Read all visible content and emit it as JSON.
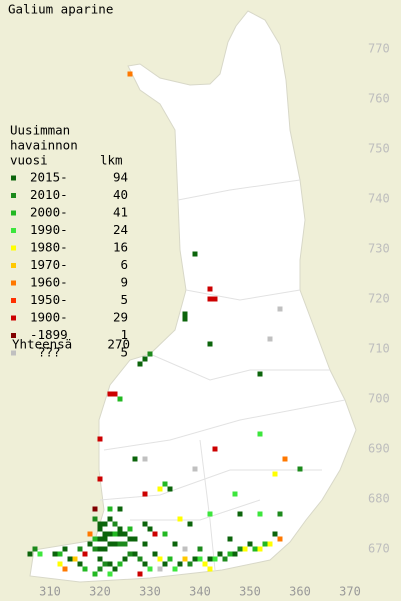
{
  "title": "Galium aparine",
  "legend": {
    "heading": [
      "Uusimman",
      "havainnon",
      "vuosi"
    ],
    "count_heading": "lkm",
    "items": [
      {
        "label": "2015-",
        "count": 94,
        "color": "#0b640b"
      },
      {
        "label": "2010-",
        "count": 40,
        "color": "#1c8a1c"
      },
      {
        "label": "2000-",
        "count": 41,
        "color": "#22b822"
      },
      {
        "label": "1990-",
        "count": 24,
        "color": "#3ce63c"
      },
      {
        "label": "1980-",
        "count": 16,
        "color": "#ffff00"
      },
      {
        "label": "1970-",
        "count": 6,
        "color": "#ffc800"
      },
      {
        "label": "1960-",
        "count": 9,
        "color": "#ff7800"
      },
      {
        "label": "1950-",
        "count": 5,
        "color": "#ff3000"
      },
      {
        "label": "1900-",
        "count": 29,
        "color": "#cc0000"
      },
      {
        "label": "-1899",
        "count": 1,
        "color": "#800000"
      },
      {
        "label": "???",
        "count": 5,
        "color": "#c0c0c0"
      }
    ],
    "total_label": "Yhteensä",
    "total": 270
  },
  "map": {
    "xticks": [
      310,
      320,
      330,
      340,
      350,
      360,
      370
    ],
    "yticks": [
      670,
      680,
      690,
      700,
      710,
      720,
      730,
      740,
      750,
      760,
      770
    ],
    "squares": [
      [
        326,
        765,
        6
      ],
      [
        339,
        729,
        0
      ],
      [
        342,
        722,
        8
      ],
      [
        342,
        720,
        8
      ],
      [
        343,
        720,
        8
      ],
      [
        337,
        717,
        0
      ],
      [
        337,
        716,
        0
      ],
      [
        356,
        718,
        10
      ],
      [
        354,
        712,
        10
      ],
      [
        342,
        711,
        0
      ],
      [
        330,
        709,
        1
      ],
      [
        329,
        708,
        0
      ],
      [
        328,
        707,
        0
      ],
      [
        352,
        705,
        0
      ],
      [
        322,
        701,
        8
      ],
      [
        323,
        701,
        8
      ],
      [
        324,
        700,
        2
      ],
      [
        320,
        692,
        8
      ],
      [
        343,
        690,
        8
      ],
      [
        352,
        693,
        3
      ],
      [
        357,
        688,
        6
      ],
      [
        355,
        685,
        4
      ],
      [
        360,
        686,
        1
      ],
      [
        329,
        688,
        10
      ],
      [
        339,
        686,
        10
      ],
      [
        327,
        688,
        0
      ],
      [
        333,
        683,
        2
      ],
      [
        332,
        682,
        4
      ],
      [
        334,
        682,
        0
      ],
      [
        329,
        681,
        8
      ],
      [
        347,
        681,
        3
      ],
      [
        320,
        684,
        8
      ],
      [
        319,
        678,
        9
      ],
      [
        322,
        678,
        2
      ],
      [
        324,
        678,
        0
      ],
      [
        342,
        677,
        3
      ],
      [
        348,
        677,
        0
      ],
      [
        352,
        677,
        3
      ],
      [
        356,
        677,
        1
      ],
      [
        336,
        676,
        4
      ],
      [
        338,
        675,
        0
      ],
      [
        329,
        675,
        0
      ],
      [
        319,
        676,
        1
      ],
      [
        320,
        675,
        0
      ],
      [
        321,
        675,
        0
      ],
      [
        322,
        676,
        0
      ],
      [
        323,
        675,
        1
      ],
      [
        324,
        674,
        0
      ],
      [
        320,
        674,
        0
      ],
      [
        321,
        673,
        0
      ],
      [
        322,
        673,
        0
      ],
      [
        323,
        673,
        2
      ],
      [
        324,
        673,
        0
      ],
      [
        325,
        673,
        0
      ],
      [
        326,
        672,
        0
      ],
      [
        318,
        673,
        6
      ],
      [
        319,
        672,
        2
      ],
      [
        320,
        672,
        0
      ],
      [
        321,
        672,
        0
      ],
      [
        322,
        671,
        0
      ],
      [
        323,
        671,
        0
      ],
      [
        324,
        671,
        1
      ],
      [
        325,
        671,
        1
      ],
      [
        318,
        671,
        0
      ],
      [
        319,
        670,
        1
      ],
      [
        320,
        670,
        0
      ],
      [
        321,
        670,
        0
      ],
      [
        316,
        670,
        1
      ],
      [
        317,
        669,
        8
      ],
      [
        313,
        670,
        0
      ],
      [
        312,
        669,
        2
      ],
      [
        311,
        669,
        0
      ],
      [
        307,
        670,
        1
      ],
      [
        308,
        669,
        3
      ],
      [
        306,
        669,
        0
      ],
      [
        314,
        668,
        0
      ],
      [
        315,
        668,
        5
      ],
      [
        312,
        667,
        4
      ],
      [
        313,
        666,
        6
      ],
      [
        316,
        667,
        0
      ],
      [
        317,
        666,
        2
      ],
      [
        320,
        668,
        0
      ],
      [
        321,
        667,
        1
      ],
      [
        322,
        667,
        0
      ],
      [
        323,
        666,
        0
      ],
      [
        324,
        667,
        2
      ],
      [
        325,
        668,
        0
      ],
      [
        326,
        669,
        1
      ],
      [
        327,
        669,
        0
      ],
      [
        328,
        668,
        1
      ],
      [
        329,
        667,
        0
      ],
      [
        330,
        666,
        3
      ],
      [
        331,
        669,
        0
      ],
      [
        332,
        668,
        4
      ],
      [
        333,
        667,
        0
      ],
      [
        334,
        668,
        2
      ],
      [
        336,
        667,
        0
      ],
      [
        337,
        668,
        5
      ],
      [
        338,
        667,
        1
      ],
      [
        339,
        668,
        0
      ],
      [
        340,
        668,
        3
      ],
      [
        341,
        667,
        4
      ],
      [
        342,
        668,
        0
      ],
      [
        343,
        668,
        3
      ],
      [
        344,
        669,
        0
      ],
      [
        345,
        668,
        1
      ],
      [
        346,
        669,
        2
      ],
      [
        347,
        669,
        0
      ],
      [
        348,
        670,
        1
      ],
      [
        349,
        670,
        4
      ],
      [
        350,
        671,
        0
      ],
      [
        351,
        670,
        2
      ],
      [
        352,
        670,
        4
      ],
      [
        353,
        671,
        2
      ],
      [
        354,
        671,
        4
      ],
      [
        355,
        673,
        0
      ],
      [
        356,
        672,
        6
      ],
      [
        319,
        665,
        2
      ],
      [
        320,
        666,
        1
      ],
      [
        322,
        665,
        3
      ],
      [
        328,
        665,
        8
      ],
      [
        332,
        666,
        10
      ],
      [
        335,
        666,
        3
      ],
      [
        342,
        666,
        4
      ],
      [
        326,
        674,
        2
      ],
      [
        327,
        672,
        0
      ],
      [
        330,
        674,
        0
      ],
      [
        331,
        673,
        8
      ],
      [
        333,
        673,
        2
      ],
      [
        329,
        671,
        0
      ],
      [
        335,
        671,
        0
      ],
      [
        337,
        670,
        10
      ],
      [
        346,
        672,
        0
      ],
      [
        340,
        670,
        1
      ]
    ]
  }
}
